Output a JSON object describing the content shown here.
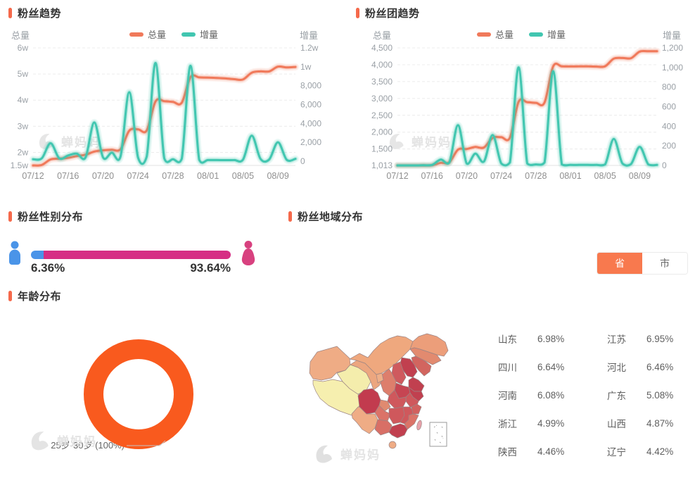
{
  "watermark": "蝉妈妈",
  "colors": {
    "accent_orange": "#F5694B",
    "line_total": "#F0795A",
    "line_increment": "#41C6B0",
    "male_blue": "#4A94E8",
    "female_pink": "#D62E84",
    "donut_orange": "#F95A1E",
    "toggle_active": "#F8794E"
  },
  "sections": {
    "gender": {
      "title": "粉丝性别分布",
      "male_pct": "6.36%",
      "female_pct": "93.64%"
    },
    "region": {
      "title": "粉丝地域分布",
      "toggle": {
        "province": "省",
        "city": "市"
      }
    },
    "age": {
      "title": "年龄分布",
      "label": "25岁-30岁 (100%)"
    }
  },
  "chart_data": [
    {
      "type": "line",
      "title": "粉丝趋势",
      "grid": "dashed",
      "legend_position": "top-center",
      "x": [
        "07/12",
        "07/13",
        "07/14",
        "07/15",
        "07/16",
        "07/17",
        "07/18",
        "07/19",
        "07/20",
        "07/21",
        "07/22",
        "07/23",
        "07/24",
        "07/25",
        "07/26",
        "07/27",
        "07/28",
        "07/29",
        "07/30",
        "07/31",
        "08/01",
        "08/02",
        "08/03",
        "08/04",
        "08/05",
        "08/06",
        "08/07",
        "08/08",
        "08/09",
        "08/10",
        "08/11"
      ],
      "x_tick_labels": [
        "07/12",
        "07/16",
        "07/20",
        "07/24",
        "07/28",
        "08/01",
        "08/05",
        "08/09"
      ],
      "left_axis": {
        "label": "总量",
        "min": 15000,
        "max": 60000,
        "tick_values": [
          60000,
          50000,
          40000,
          30000,
          20000,
          15000
        ],
        "ticks": [
          "6w",
          "5w",
          "4w",
          "3w",
          "2w",
          "1.5w"
        ]
      },
      "right_axis": {
        "label": "增量",
        "min": -450,
        "max": 12000,
        "tick_values": [
          12000,
          10000,
          8000,
          6000,
          4000,
          2000,
          0
        ],
        "ticks": [
          "1.2w",
          "1w",
          "8,000",
          "6,000",
          "4,000",
          "2,000",
          "0"
        ]
      },
      "series": [
        {
          "name": "总量",
          "axis": "left",
          "color": "#F0795A",
          "values": [
            15000,
            15200,
            17300,
            17600,
            17900,
            18600,
            19100,
            20300,
            20800,
            21000,
            21200,
            28300,
            28800,
            28400,
            39500,
            39600,
            39300,
            39000,
            48800,
            48700,
            48600,
            48500,
            48300,
            48000,
            47900,
            50500,
            51000,
            51000,
            52800,
            52500,
            52700
          ]
        },
        {
          "name": "增量",
          "axis": "right",
          "color": "#41C6B0",
          "values": [
            200,
            300,
            1900,
            300,
            600,
            800,
            400,
            4100,
            400,
            900,
            500,
            7300,
            400,
            500,
            10400,
            300,
            200,
            250,
            10100,
            150,
            120,
            120,
            110,
            120,
            160,
            2700,
            250,
            180,
            2000,
            150,
            250
          ]
        }
      ]
    },
    {
      "type": "line",
      "title": "粉丝团趋势",
      "grid": "dashed",
      "legend_position": "top-center",
      "x": [
        "07/12",
        "07/13",
        "07/14",
        "07/15",
        "07/16",
        "07/17",
        "07/18",
        "07/19",
        "07/20",
        "07/21",
        "07/22",
        "07/23",
        "07/24",
        "07/25",
        "07/26",
        "07/27",
        "07/28",
        "07/29",
        "07/30",
        "07/31",
        "08/01",
        "08/02",
        "08/03",
        "08/04",
        "08/05",
        "08/06",
        "08/07",
        "08/08",
        "08/09",
        "08/10",
        "08/11"
      ],
      "x_tick_labels": [
        "07/12",
        "07/16",
        "07/20",
        "07/24",
        "07/28",
        "08/01",
        "08/05",
        "08/09"
      ],
      "left_axis": {
        "label": "总量",
        "min": 1013,
        "max": 4500,
        "tick_values": [
          4500,
          4000,
          3500,
          3000,
          2500,
          2000,
          1500,
          1013
        ],
        "ticks": [
          "4,500",
          "4,000",
          "3,500",
          "3,000",
          "2,500",
          "2,000",
          "1,500",
          "1,013"
        ]
      },
      "right_axis": {
        "label": "增量",
        "min": 0,
        "max": 1200,
        "tick_values": [
          1200,
          1000,
          800,
          600,
          400,
          200,
          0
        ],
        "ticks": [
          "1,200",
          "1,000",
          "800",
          "600",
          "400",
          "200",
          "0"
        ]
      },
      "series": [
        {
          "name": "总量",
          "axis": "left",
          "color": "#F0795A",
          "values": [
            1013,
            1013,
            1014,
            1015,
            1020,
            1090,
            1110,
            1480,
            1500,
            1560,
            1545,
            1830,
            1850,
            1835,
            2900,
            2890,
            2870,
            2880,
            3950,
            3950,
            3948,
            3950,
            3950,
            3945,
            3955,
            4180,
            4200,
            4195,
            4390,
            4400,
            4400
          ]
        },
        {
          "name": "增量",
          "axis": "right",
          "color": "#41C6B0",
          "values": [
            0,
            0,
            0,
            2,
            5,
            60,
            30,
            410,
            20,
            120,
            40,
            310,
            20,
            30,
            1000,
            20,
            10,
            30,
            960,
            10,
            5,
            5,
            5,
            5,
            10,
            270,
            20,
            15,
            190,
            10,
            5
          ]
        }
      ]
    },
    {
      "type": "bar",
      "title": "粉丝性别分布",
      "categories": [
        "男",
        "女"
      ],
      "values": [
        6.36,
        93.64
      ],
      "unit": "%"
    },
    {
      "type": "pie",
      "title": "年龄分布",
      "categories": [
        "25岁-30岁"
      ],
      "values": [
        100
      ],
      "label": "25岁-30岁 (100%)",
      "unit": "%"
    },
    {
      "type": "table",
      "title": "粉丝地域分布",
      "categories": [
        "山东",
        "江苏",
        "四川",
        "河北",
        "河南",
        "广东",
        "浙江",
        "山西",
        "陕西",
        "辽宁"
      ],
      "values": [
        6.98,
        6.95,
        6.64,
        6.46,
        6.08,
        5.08,
        4.99,
        4.87,
        4.46,
        4.42
      ],
      "unit": "%"
    }
  ]
}
